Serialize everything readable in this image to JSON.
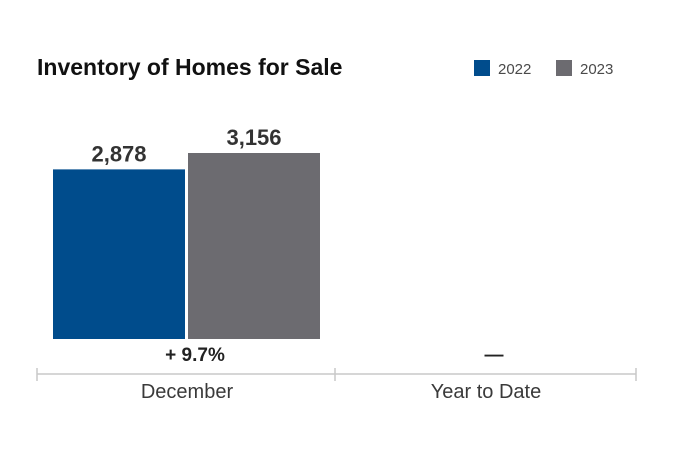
{
  "chart_data": {
    "type": "bar",
    "title": "Inventory of Homes for Sale",
    "categories": [
      "December",
      "Year to Date"
    ],
    "series": [
      {
        "name": "2022",
        "values": [
          2878,
          null
        ],
        "labels": [
          "2,878",
          ""
        ],
        "color": "#004c8c"
      },
      {
        "name": "2023",
        "values": [
          3156,
          null
        ],
        "labels": [
          "3,156",
          ""
        ],
        "color": "#6c6b70"
      }
    ],
    "changes": [
      "+ 9.7%",
      "—"
    ],
    "ylim": [
      0,
      3156
    ],
    "grid": false,
    "legend_position": "top-right"
  }
}
